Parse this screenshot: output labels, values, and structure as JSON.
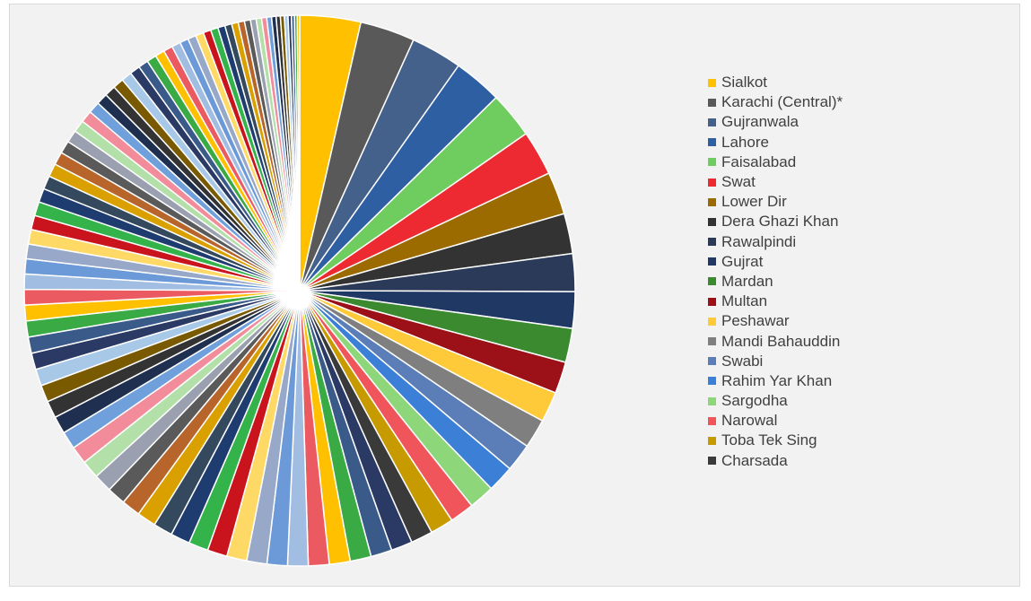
{
  "chart_data": {
    "type": "pie",
    "title": "",
    "legend_position": "right",
    "slices_total": 96,
    "labeled_slices": [
      {
        "label": "Sialkot",
        "value": 5.0,
        "color": "#ffc000"
      },
      {
        "label": "Karachi (Central)*",
        "value": 4.5,
        "color": "#595959"
      },
      {
        "label": "Gujranwala",
        "value": 4.2,
        "color": "#44618c"
      },
      {
        "label": "Lahore",
        "value": 4.0,
        "color": "#2e5fa3"
      },
      {
        "label": "Faisalabad",
        "value": 3.8,
        "color": "#6fcc5f"
      },
      {
        "label": "Swat",
        "value": 3.7,
        "color": "#ed2a31"
      },
      {
        "label": "Lower Dir",
        "value": 3.5,
        "color": "#9c6b00"
      },
      {
        "label": "Dera Ghazi Khan",
        "value": 3.3,
        "color": "#333333"
      },
      {
        "label": "Rawalpindi",
        "value": 3.1,
        "color": "#2b3a58"
      },
      {
        "label": "Gujrat",
        "value": 3.0,
        "color": "#1f3864"
      },
      {
        "label": "Mardan",
        "value": 2.8,
        "color": "#3b8a2f"
      },
      {
        "label": "Multan",
        "value": 2.6,
        "color": "#9b1117"
      },
      {
        "label": "Peshawar",
        "value": 2.5,
        "color": "#ffca3a"
      },
      {
        "label": "Mandi Bahauddin",
        "value": 2.4,
        "color": "#7f7f7f"
      },
      {
        "label": "Swabi",
        "value": 2.3,
        "color": "#5c7eb8"
      },
      {
        "label": "Rahim Yar Khan",
        "value": 2.2,
        "color": "#3c7fd6"
      },
      {
        "label": "Sargodha",
        "value": 2.1,
        "color": "#8dd67a"
      },
      {
        "label": "Narowal",
        "value": 2.0,
        "color": "#f0555b"
      },
      {
        "label": "Toba Tek Sing",
        "value": 1.9,
        "color": "#c79a00"
      },
      {
        "label": "Charsada",
        "value": 1.8,
        "color": "#3a3a3a"
      }
    ],
    "other_slice_palette": [
      "#2a3a64",
      "#3a5a8a",
      "#3aaa44",
      "#ffc000",
      "#ea5a60",
      "#a2bde2",
      "#6c9ad8",
      "#98a8c8",
      "#ffd966",
      "#c9141e",
      "#33b34a",
      "#1f3c70",
      "#34495e",
      "#d9a000",
      "#b7652b",
      "#5a5a5a",
      "#9aa0b0",
      "#b3e0a8",
      "#f28c9b",
      "#6fa0dc",
      "#1f2f4f",
      "#333333",
      "#7a5a00",
      "#a8c8e8"
    ]
  }
}
